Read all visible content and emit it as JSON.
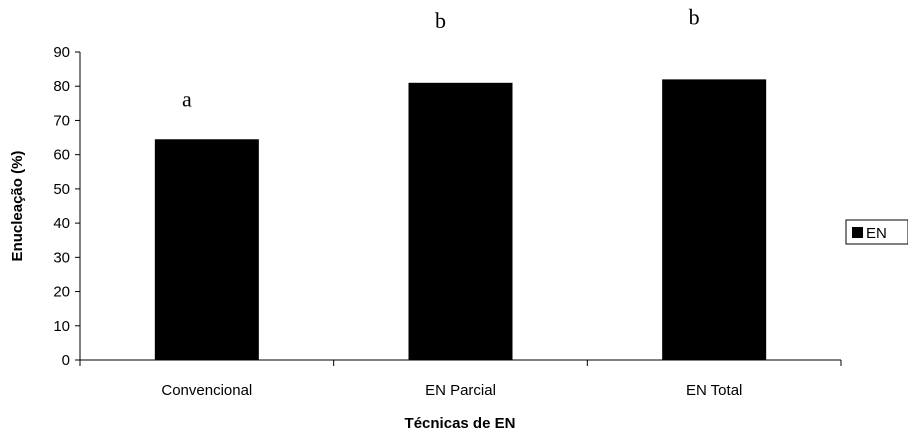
{
  "chart_data": {
    "type": "bar",
    "categories": [
      "Convencional",
      "EN Parcial",
      "EN Total"
    ],
    "series": [
      {
        "name": "EN",
        "values": [
          64.5,
          81,
          82
        ],
        "color": "#000000"
      }
    ],
    "annotations": [
      "a",
      "b",
      "b"
    ],
    "xlabel": "Técnicas de EN",
    "ylabel": "Enucleação (%)",
    "ylim": [
      0,
      90
    ],
    "yticks": [
      0,
      10,
      20,
      30,
      40,
      50,
      60,
      70,
      80,
      90
    ],
    "grid": false,
    "legend_position": "right"
  }
}
